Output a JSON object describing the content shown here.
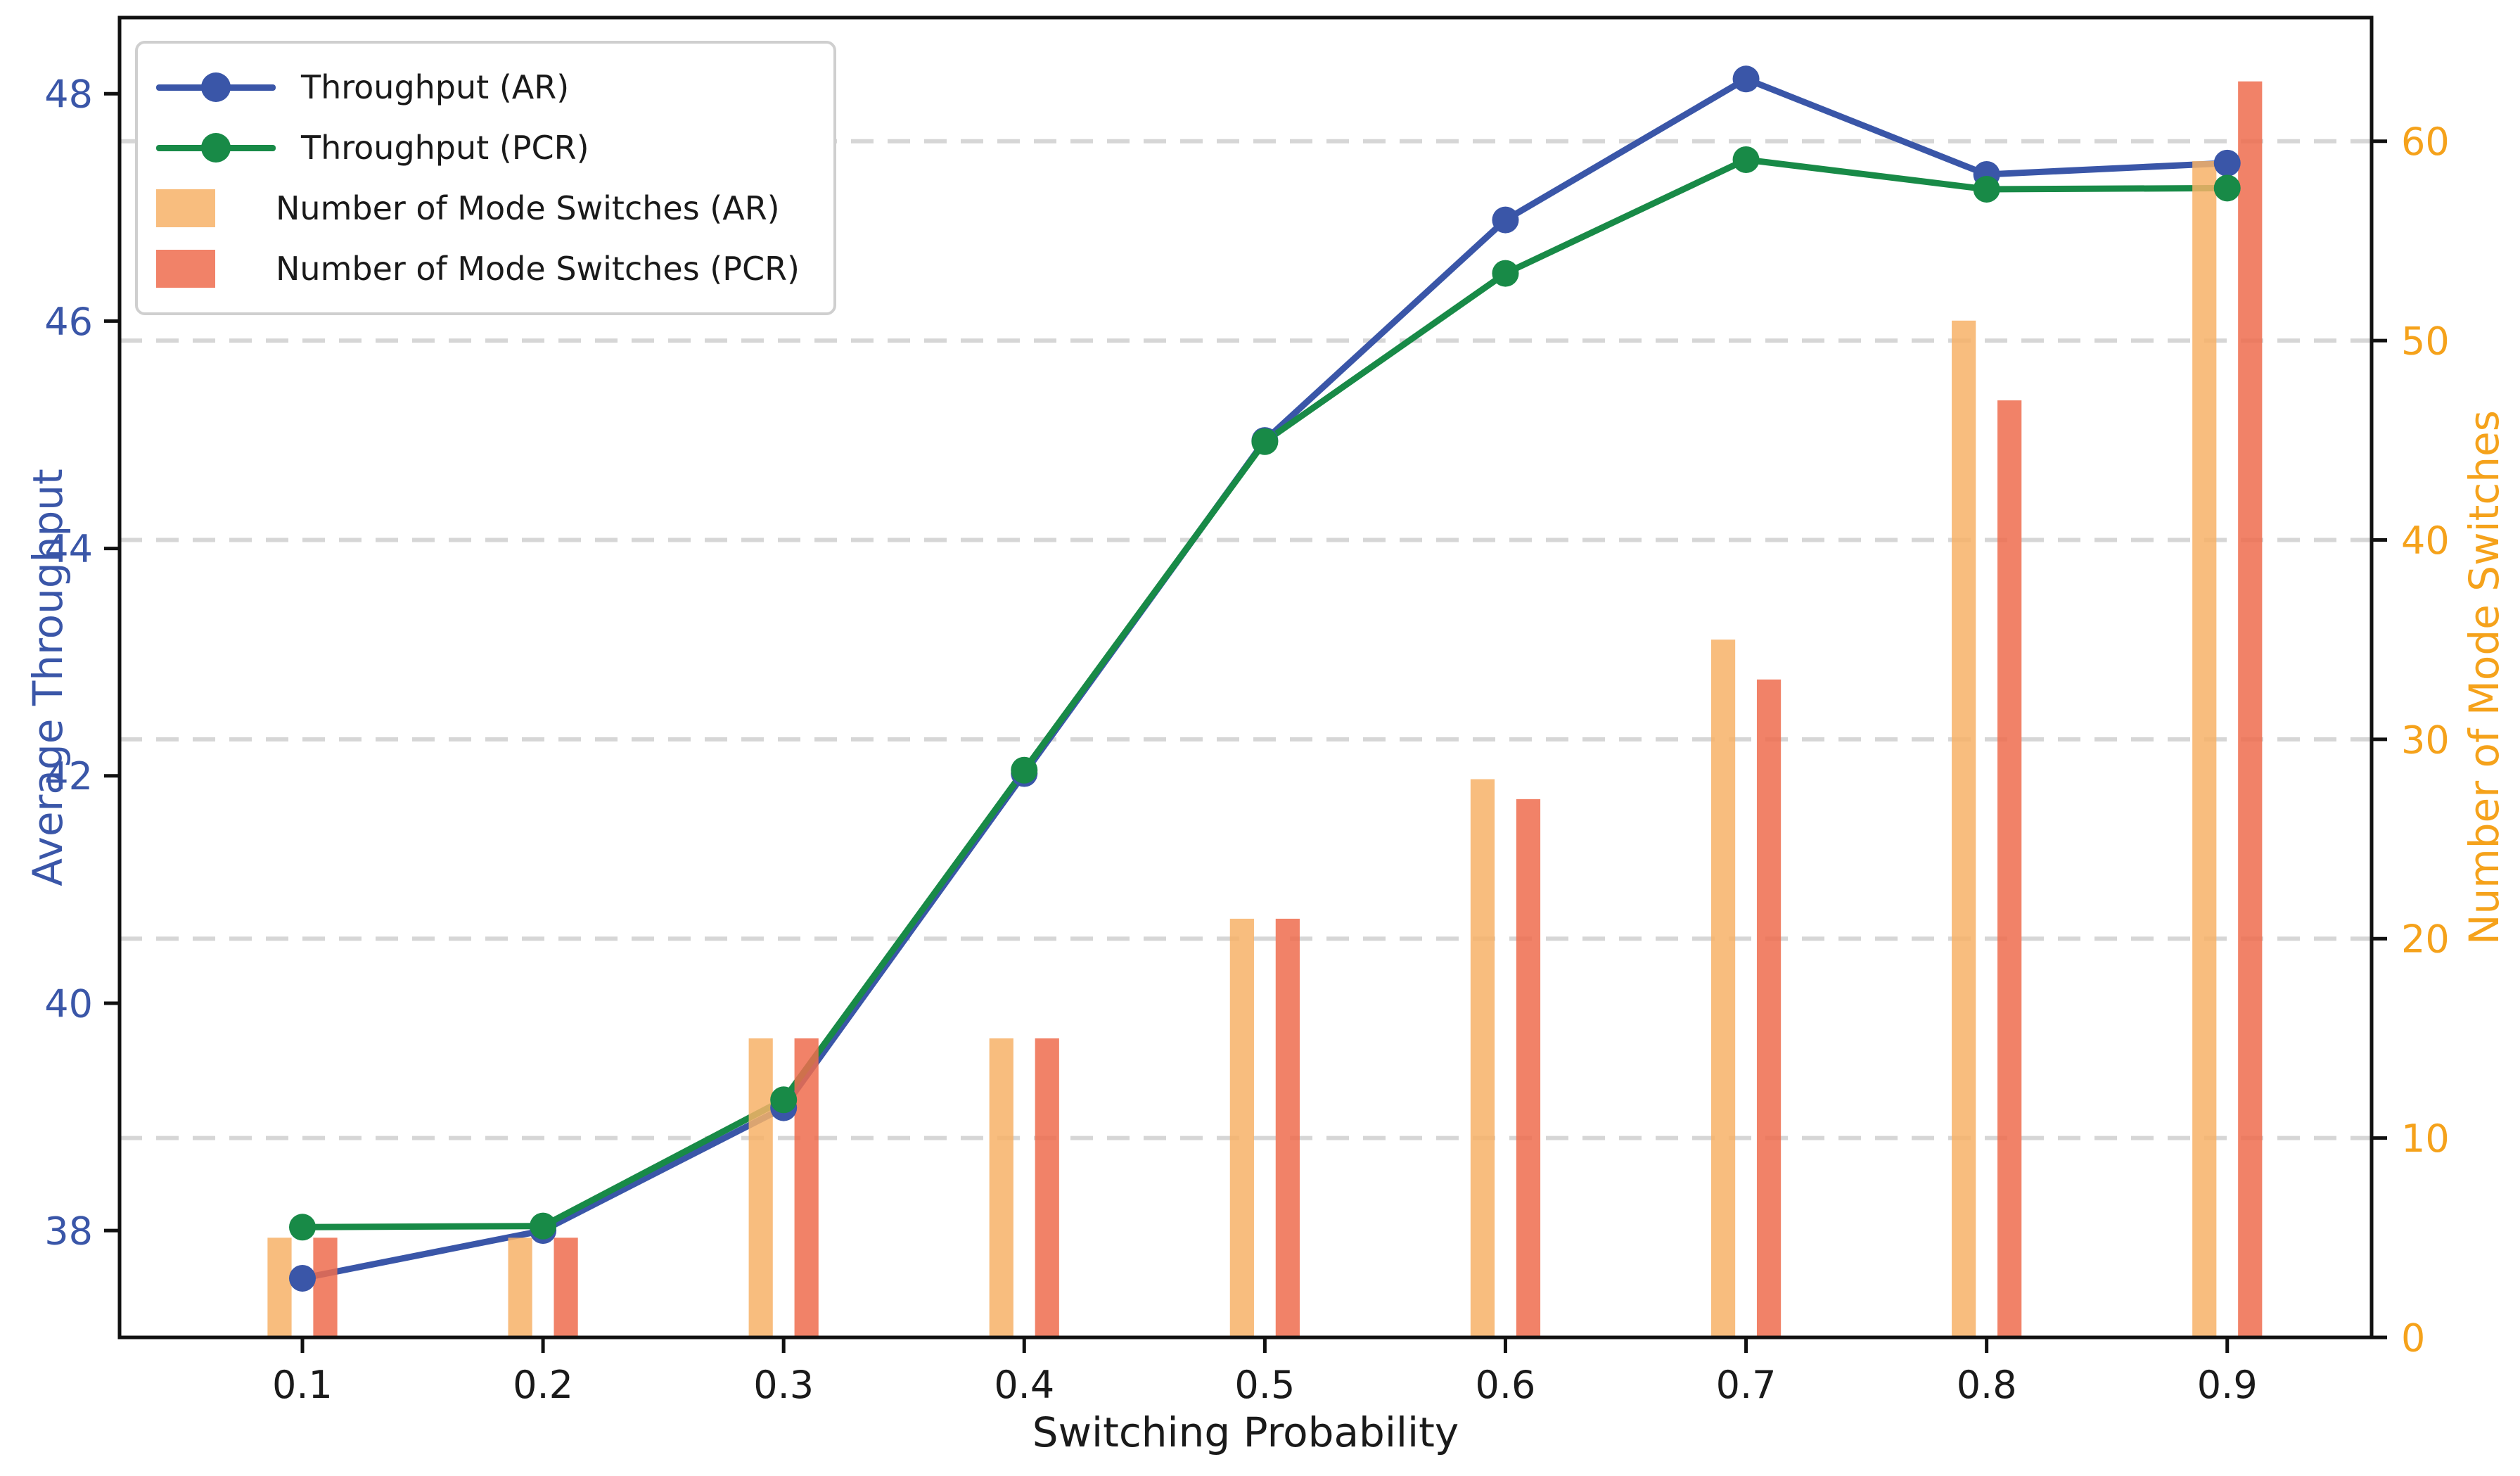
{
  "figure": {
    "background": "#ffffff"
  },
  "style": {
    "left_axis_color": "#3A56A8",
    "right_axis_color": "#F5A21B",
    "text_color": "#1a1a1a",
    "grid_color": "#d6d6d6",
    "spine_color": "#111111",
    "legend_border_color": "#cfcfcf",
    "legend_bg": "#ffffff"
  },
  "chart_data": {
    "type": "line+bar dual-axis",
    "x": [
      0.1,
      0.2,
      0.3,
      0.4,
      0.5,
      0.6,
      0.7,
      0.8,
      0.9
    ],
    "x_tick_labels": [
      "0.1",
      "0.2",
      "0.3",
      "0.4",
      "0.5",
      "0.6",
      "0.7",
      "0.8",
      "0.9"
    ],
    "series": [
      {
        "name": "Throughput (AR)",
        "type": "line",
        "axis": "left",
        "color": "#3A56A8",
        "values": [
          37.58,
          38.0,
          39.08,
          42.02,
          44.95,
          46.89,
          48.13,
          47.29,
          47.39
        ]
      },
      {
        "name": "Throughput (PCR)",
        "type": "line",
        "axis": "left",
        "color": "#188A47",
        "values": [
          38.03,
          38.04,
          39.15,
          42.05,
          44.94,
          46.42,
          47.42,
          47.16,
          47.17
        ]
      },
      {
        "name": "Number of Mode Switches (AR)",
        "type": "bar",
        "axis": "right",
        "color": "#F7B267",
        "opacity": 0.85,
        "values": [
          5,
          5,
          15,
          15,
          21,
          28,
          35,
          51,
          59
        ]
      },
      {
        "name": "Number of Mode Switches (PCR)",
        "type": "bar",
        "axis": "right",
        "color": "#EE6C4D",
        "opacity": 0.85,
        "values": [
          5,
          5,
          15,
          15,
          21,
          27,
          33,
          47,
          63
        ]
      }
    ],
    "xlabel": "Switching Probability",
    "ylabel_left": "Average Throughput",
    "ylabel_right": "Number of Mode Switches",
    "y_left_ticks": [
      38,
      40,
      42,
      44,
      46,
      48
    ],
    "y_right_ticks": [
      0,
      10,
      20,
      30,
      40,
      50,
      60
    ],
    "y_left_lim": [
      37.06,
      48.67
    ],
    "y_right_lim": [
      0,
      66.2
    ],
    "x_lim": [
      0.024,
      0.96
    ],
    "bar_width": 0.01,
    "bar_offset": 0.0095,
    "grid": {
      "axis": "y-right",
      "style": "dashed",
      "on_ticks": [
        10,
        20,
        30,
        40,
        50,
        60
      ]
    },
    "legend_position": "upper left"
  },
  "legend": {
    "items": [
      {
        "label": "Throughput (AR)",
        "swatch": "line-marker",
        "color": "#3A56A8"
      },
      {
        "label": "Throughput (PCR)",
        "swatch": "line-marker",
        "color": "#188A47"
      },
      {
        "label": "Number of Mode Switches (AR)",
        "swatch": "patch",
        "color": "#F8BD7E"
      },
      {
        "label": "Number of Mode Switches (PCR)",
        "swatch": "patch",
        "color": "#F18268"
      }
    ]
  }
}
